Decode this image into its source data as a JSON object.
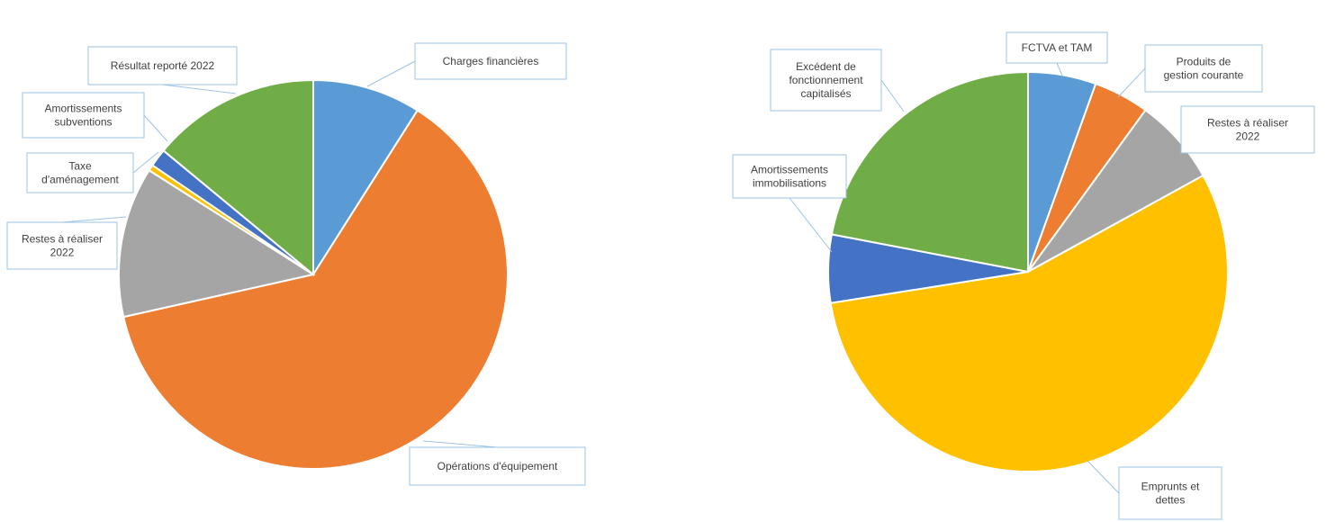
{
  "chart_data": [
    {
      "type": "pie",
      "title": "",
      "start_angle_deg": 0,
      "direction": "clockwise",
      "slices": [
        {
          "label": "Charges financières",
          "value": 9.0,
          "color": "#5b9bd5"
        },
        {
          "label": "Opérations d'équipement",
          "value": 62.5,
          "color": "#ed7d31"
        },
        {
          "label": "Restes à réaliser 2022",
          "value": 12.5,
          "color": "#a5a5a5"
        },
        {
          "label": "Taxe d'aménagement",
          "value": 0.5,
          "color": "#ffc000"
        },
        {
          "label": "Amortissements subventions",
          "value": 1.5,
          "color": "#4472c4"
        },
        {
          "label": "Résultat reporté 2022",
          "value": 14.0,
          "color": "#70ad47"
        }
      ],
      "legend": "none"
    },
    {
      "type": "pie",
      "title": "",
      "start_angle_deg": 0,
      "direction": "clockwise",
      "slices": [
        {
          "label": "FCTVA et TAM",
          "value": 5.5,
          "color": "#5b9bd5"
        },
        {
          "label": "Produits de gestion courante",
          "value": 4.5,
          "color": "#ed7d31"
        },
        {
          "label": "Restes à réaliser 2022",
          "value": 7.0,
          "color": "#a5a5a5"
        },
        {
          "label": "Emprunts et dettes",
          "value": 55.5,
          "color": "#ffc000"
        },
        {
          "label": "Amortissements immobilisations",
          "value": 5.5,
          "color": "#4472c4"
        },
        {
          "label": "Excédent de fonctionnement capitalisés",
          "value": 22.0,
          "color": "#70ad47"
        }
      ],
      "legend": "none"
    }
  ],
  "labels": {
    "left": [
      "Charges financières",
      "Opérations d'équipement",
      "Restes à réaliser 2022",
      "Taxe d'aménagement",
      "Amortissements subventions",
      "Résultat reporté 2022"
    ],
    "right": [
      "FCTVA et TAM",
      "Produits de gestion courante",
      "Restes à réaliser 2022",
      "Emprunts et dettes",
      "Amortissements immobilisations",
      "Excédent de fonctionnement capitalisés"
    ]
  }
}
